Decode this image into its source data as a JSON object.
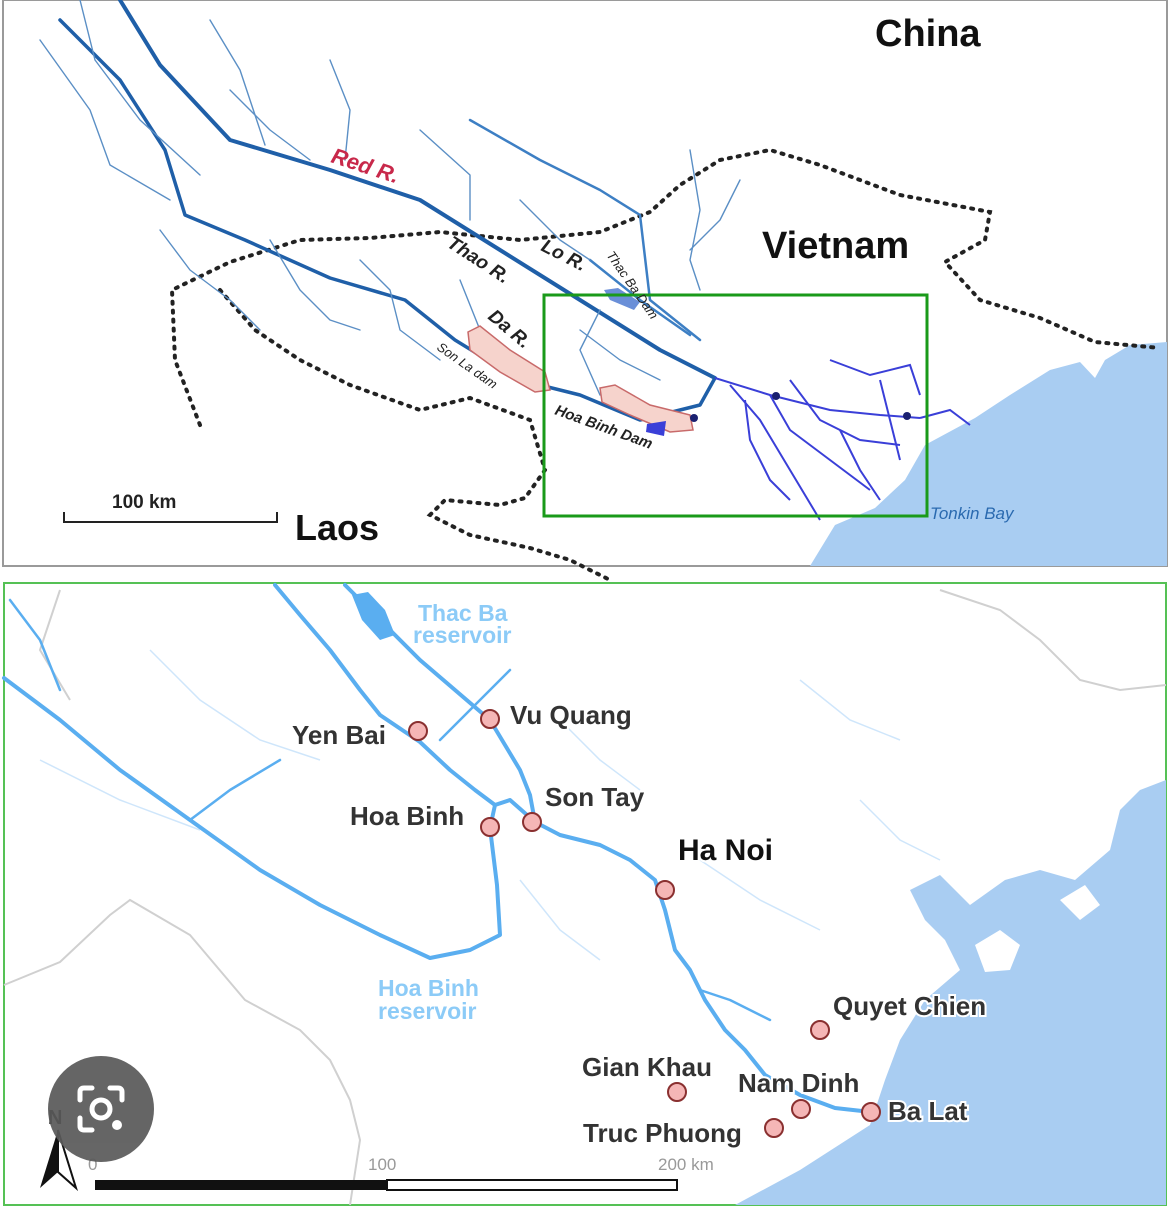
{
  "overview_map": {
    "countries": [
      "China",
      "Vietnam",
      "Laos"
    ],
    "rivers": [
      "Red R.",
      "Thao R.",
      "Lo R.",
      "Da R."
    ],
    "dams": [
      "Thac Ba Dam",
      "Son La dam",
      "Hoa Binh Dam"
    ],
    "sea": "Tonkin Bay",
    "scale_label": "100 km"
  },
  "detail_map": {
    "reservoirs": [
      {
        "line1": "Thac Ba",
        "line2": "reservoir"
      },
      {
        "line1": "Hoa Binh",
        "line2": "reservoir"
      }
    ],
    "stations": [
      "Yen Bai",
      "Vu Quang",
      "Son Tay",
      "Hoa Binh",
      "Ha Noi",
      "Quyet Chien",
      "Gian Khau",
      "Nam Dinh",
      "Truc Phuong",
      "Ba Lat"
    ],
    "scale_ticks": [
      "0",
      "100",
      "200 km"
    ],
    "north_label": "N"
  },
  "colors": {
    "river_dark": "#1f5fa8",
    "river_mid": "#3d7fc4",
    "river_light": "#5aaef0",
    "delta": "#3a3fd8",
    "sea": "#a9cdf2",
    "reservoir_fill": "#f6d3cc",
    "reservoir_stroke": "#c86a6a",
    "station_fill": "#f5b6b6",
    "station_stroke": "#8a3030",
    "box": "#1a9a1a",
    "red_label": "#c8284a"
  },
  "icons": {
    "lens": "google-lens-icon"
  }
}
